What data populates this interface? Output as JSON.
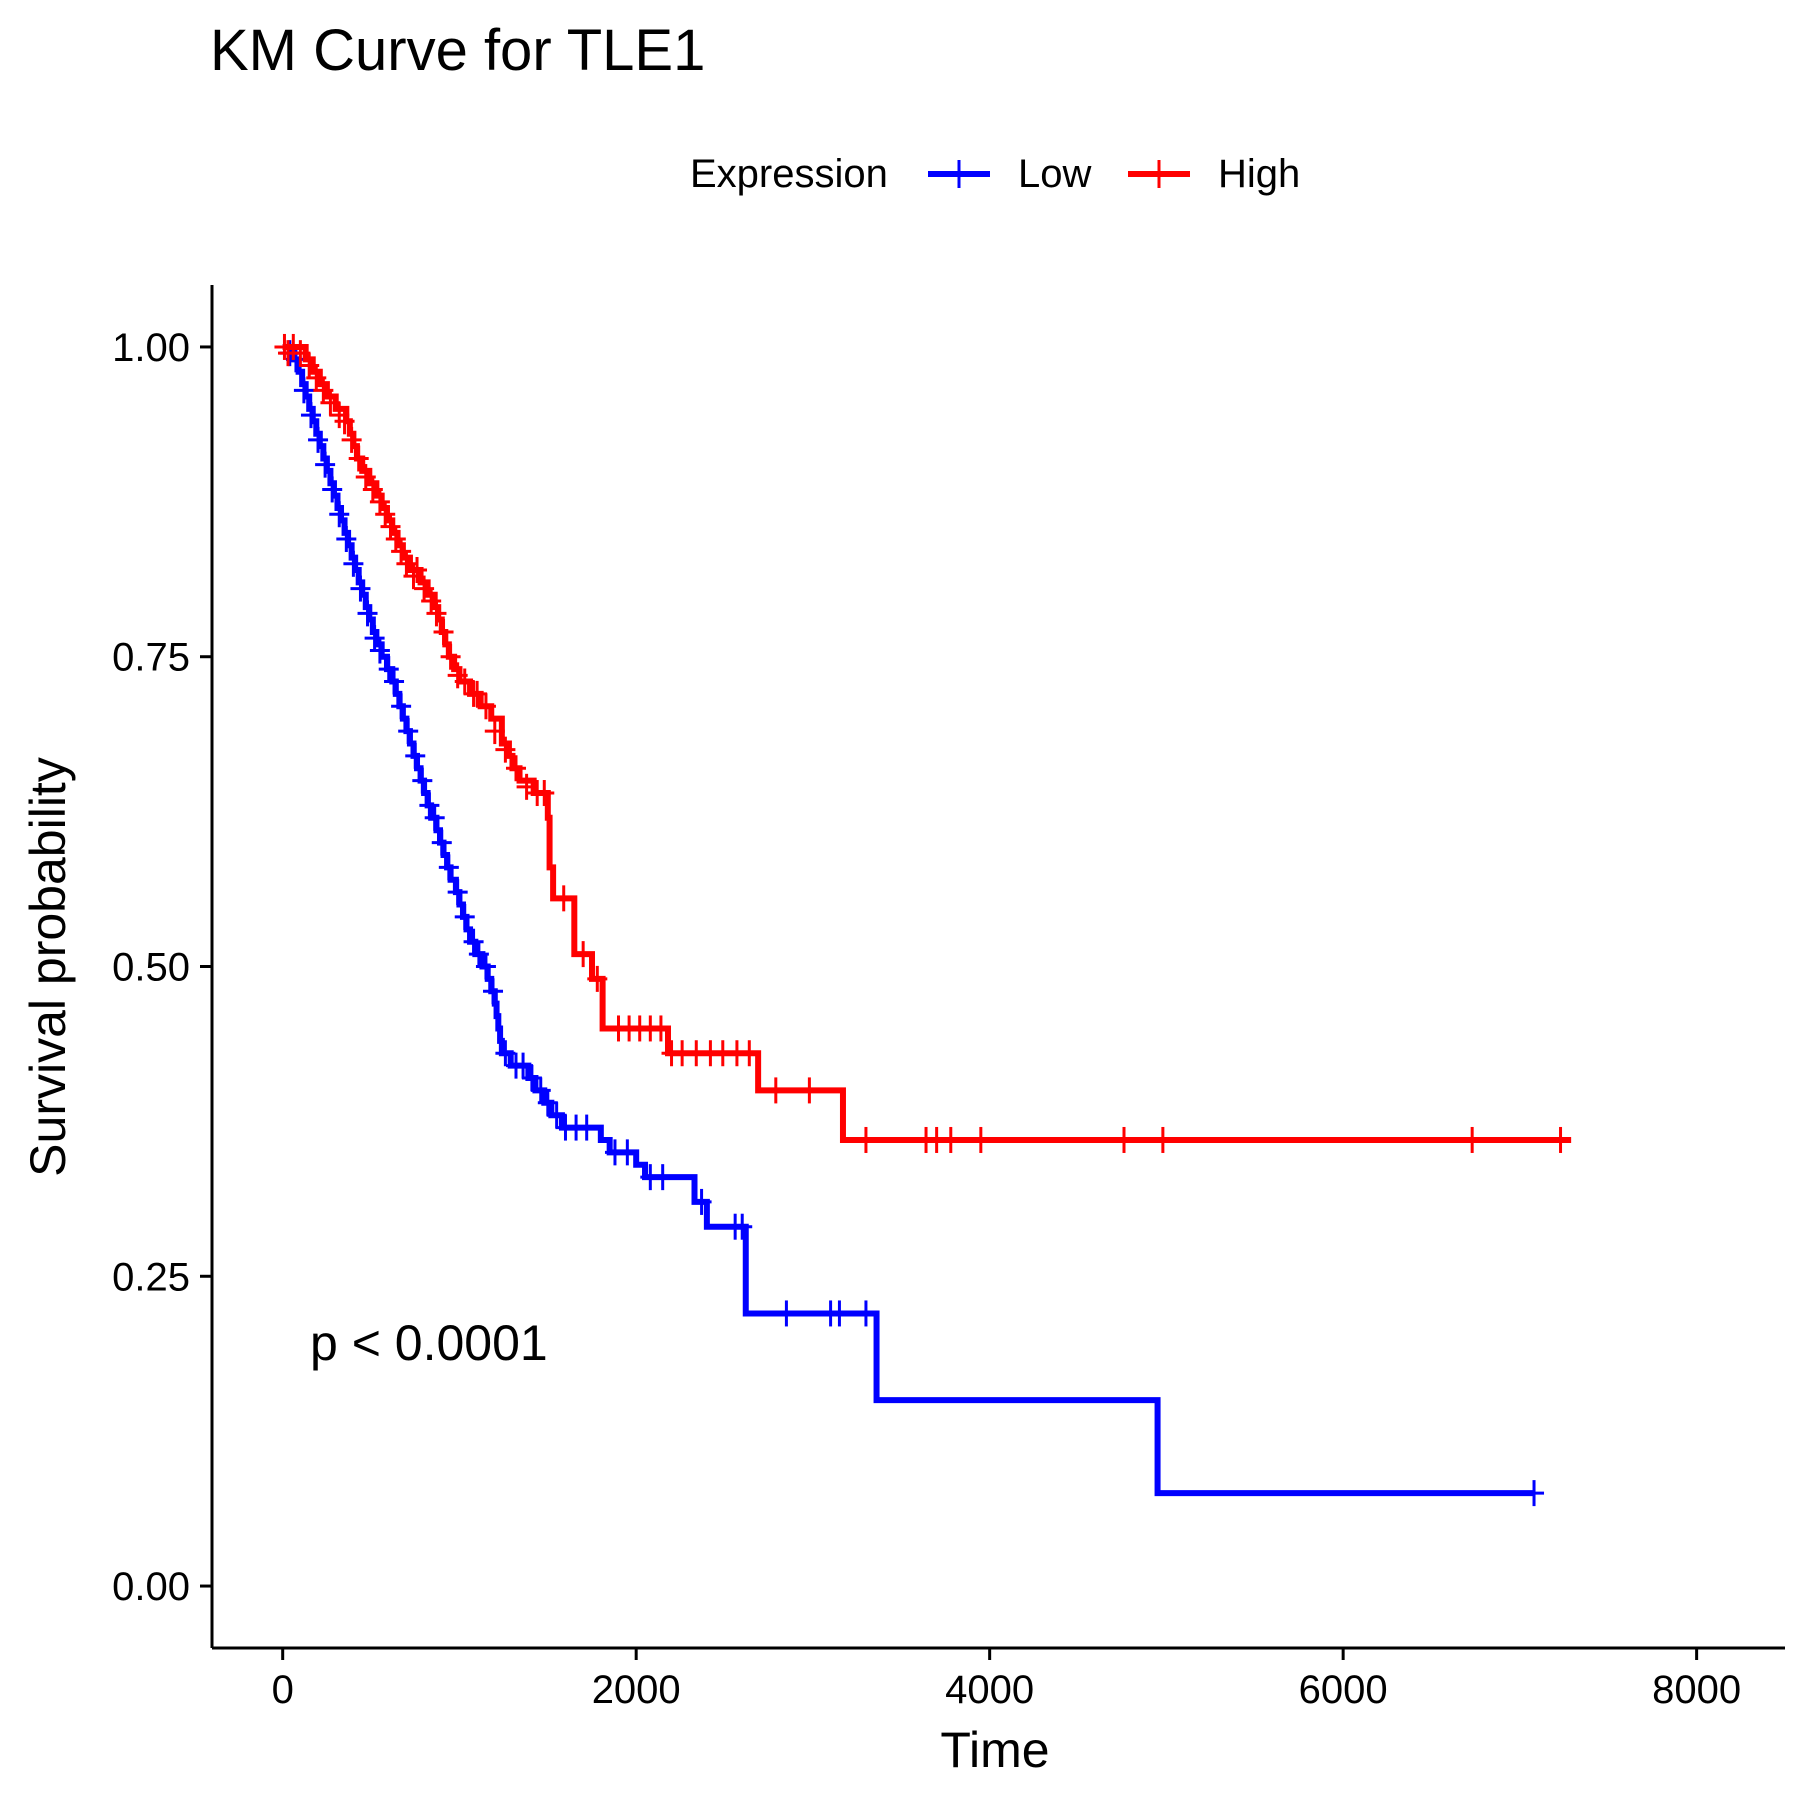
{
  "chart_data": {
    "type": "line",
    "subtype": "kaplan-meier",
    "title": "KM Curve for TLE1",
    "xlabel": "Time",
    "ylabel": "Survival probability",
    "xlim": [
      -400,
      8500
    ],
    "ylim": [
      -0.05,
      1.05
    ],
    "x_ticks": [
      0,
      2000,
      4000,
      6000,
      8000
    ],
    "x_tick_labels": [
      "0",
      "2000",
      "4000",
      "6000",
      "8000"
    ],
    "y_ticks": [
      0,
      0.25,
      0.5,
      0.75,
      1.0
    ],
    "y_tick_labels": [
      "0.00",
      "0.25",
      "0.50",
      "0.75",
      "1.00"
    ],
    "grid": false,
    "legend": {
      "title": "Expression",
      "position": "top"
    },
    "annotation": "p < 0.0001",
    "series": [
      {
        "name": "Low",
        "color": "#0000ff",
        "steps": [
          [
            0,
            1.0
          ],
          [
            60,
            0.99
          ],
          [
            90,
            0.98
          ],
          [
            110,
            0.97
          ],
          [
            130,
            0.96
          ],
          [
            150,
            0.95
          ],
          [
            170,
            0.94
          ],
          [
            190,
            0.93
          ],
          [
            210,
            0.92
          ],
          [
            230,
            0.91
          ],
          [
            250,
            0.9
          ],
          [
            270,
            0.89
          ],
          [
            290,
            0.88
          ],
          [
            310,
            0.87
          ],
          [
            330,
            0.86
          ],
          [
            350,
            0.85
          ],
          [
            370,
            0.84
          ],
          [
            390,
            0.83
          ],
          [
            410,
            0.82
          ],
          [
            430,
            0.81
          ],
          [
            450,
            0.8
          ],
          [
            470,
            0.79
          ],
          [
            490,
            0.78
          ],
          [
            510,
            0.77
          ],
          [
            530,
            0.76
          ],
          [
            560,
            0.75
          ],
          [
            590,
            0.74
          ],
          [
            620,
            0.73
          ],
          [
            640,
            0.72
          ],
          [
            660,
            0.71
          ],
          [
            680,
            0.7
          ],
          [
            700,
            0.69
          ],
          [
            720,
            0.68
          ],
          [
            740,
            0.67
          ],
          [
            760,
            0.66
          ],
          [
            780,
            0.65
          ],
          [
            800,
            0.64
          ],
          [
            820,
            0.63
          ],
          [
            840,
            0.62
          ],
          [
            870,
            0.61
          ],
          [
            890,
            0.6
          ],
          [
            910,
            0.59
          ],
          [
            930,
            0.58
          ],
          [
            950,
            0.57
          ],
          [
            980,
            0.56
          ],
          [
            1000,
            0.55
          ],
          [
            1020,
            0.54
          ],
          [
            1040,
            0.53
          ],
          [
            1060,
            0.52
          ],
          [
            1090,
            0.51
          ],
          [
            1130,
            0.5
          ],
          [
            1160,
            0.49
          ],
          [
            1180,
            0.48
          ],
          [
            1200,
            0.47
          ],
          [
            1210,
            0.46
          ],
          [
            1220,
            0.45
          ],
          [
            1230,
            0.44
          ],
          [
            1240,
            0.43
          ],
          [
            1290,
            0.42
          ],
          [
            1390,
            0.41
          ],
          [
            1430,
            0.4
          ],
          [
            1480,
            0.39
          ],
          [
            1520,
            0.38
          ],
          [
            1580,
            0.37
          ],
          [
            1800,
            0.36
          ],
          [
            1850,
            0.35
          ],
          [
            2000,
            0.34
          ],
          [
            2050,
            0.33
          ],
          [
            2330,
            0.31
          ],
          [
            2400,
            0.29
          ],
          [
            2620,
            0.22
          ],
          [
            3360,
            0.15
          ],
          [
            4950,
            0.075
          ],
          [
            7080,
            0.075
          ]
        ],
        "censored": [
          [
            40,
            0.995
          ],
          [
            75,
            0.99
          ],
          [
            120,
            0.965
          ],
          [
            160,
            0.945
          ],
          [
            200,
            0.925
          ],
          [
            240,
            0.905
          ],
          [
            280,
            0.885
          ],
          [
            320,
            0.865
          ],
          [
            360,
            0.845
          ],
          [
            400,
            0.825
          ],
          [
            440,
            0.805
          ],
          [
            480,
            0.785
          ],
          [
            520,
            0.765
          ],
          [
            550,
            0.755
          ],
          [
            600,
            0.74
          ],
          [
            630,
            0.73
          ],
          [
            670,
            0.71
          ],
          [
            710,
            0.69
          ],
          [
            750,
            0.67
          ],
          [
            790,
            0.65
          ],
          [
            830,
            0.63
          ],
          [
            860,
            0.62
          ],
          [
            900,
            0.6
          ],
          [
            940,
            0.58
          ],
          [
            990,
            0.56
          ],
          [
            1030,
            0.54
          ],
          [
            1080,
            0.52
          ],
          [
            1110,
            0.51
          ],
          [
            1150,
            0.5
          ],
          [
            1190,
            0.48
          ],
          [
            1260,
            0.43
          ],
          [
            1320,
            0.42
          ],
          [
            1360,
            0.42
          ],
          [
            1410,
            0.41
          ],
          [
            1460,
            0.4
          ],
          [
            1500,
            0.39
          ],
          [
            1550,
            0.38
          ],
          [
            1600,
            0.37
          ],
          [
            1660,
            0.37
          ],
          [
            1720,
            0.37
          ],
          [
            1880,
            0.35
          ],
          [
            1950,
            0.35
          ],
          [
            2080,
            0.33
          ],
          [
            2150,
            0.33
          ],
          [
            2370,
            0.31
          ],
          [
            2560,
            0.29
          ],
          [
            2600,
            0.29
          ],
          [
            2850,
            0.22
          ],
          [
            3100,
            0.22
          ],
          [
            3150,
            0.22
          ],
          [
            3300,
            0.22
          ],
          [
            7080,
            0.075
          ]
        ]
      },
      {
        "name": "High",
        "color": "#ff0000",
        "steps": [
          [
            0,
            1.0
          ],
          [
            130,
            0.99
          ],
          [
            170,
            0.98
          ],
          [
            210,
            0.97
          ],
          [
            250,
            0.96
          ],
          [
            300,
            0.95
          ],
          [
            360,
            0.94
          ],
          [
            380,
            0.93
          ],
          [
            400,
            0.92
          ],
          [
            420,
            0.91
          ],
          [
            450,
            0.9
          ],
          [
            490,
            0.89
          ],
          [
            530,
            0.88
          ],
          [
            560,
            0.87
          ],
          [
            590,
            0.86
          ],
          [
            620,
            0.85
          ],
          [
            650,
            0.84
          ],
          [
            680,
            0.83
          ],
          [
            720,
            0.82
          ],
          [
            780,
            0.81
          ],
          [
            820,
            0.8
          ],
          [
            860,
            0.79
          ],
          [
            880,
            0.78
          ],
          [
            900,
            0.77
          ],
          [
            920,
            0.76
          ],
          [
            940,
            0.75
          ],
          [
            970,
            0.74
          ],
          [
            1000,
            0.73
          ],
          [
            1060,
            0.72
          ],
          [
            1120,
            0.71
          ],
          [
            1180,
            0.7
          ],
          [
            1240,
            0.68
          ],
          [
            1280,
            0.67
          ],
          [
            1300,
            0.66
          ],
          [
            1340,
            0.65
          ],
          [
            1420,
            0.64
          ],
          [
            1500,
            0.62
          ],
          [
            1510,
            0.58
          ],
          [
            1530,
            0.555
          ],
          [
            1650,
            0.51
          ],
          [
            1750,
            0.49
          ],
          [
            1810,
            0.45
          ],
          [
            2180,
            0.43
          ],
          [
            2690,
            0.4
          ],
          [
            3170,
            0.36
          ],
          [
            7290,
            0.36
          ]
        ],
        "censored": [
          [
            10,
            1.0
          ],
          [
            30,
            0.995
          ],
          [
            60,
            1.0
          ],
          [
            100,
            0.995
          ],
          [
            150,
            0.985
          ],
          [
            190,
            0.975
          ],
          [
            230,
            0.965
          ],
          [
            270,
            0.955
          ],
          [
            320,
            0.945
          ],
          [
            350,
            0.94
          ],
          [
            390,
            0.925
          ],
          [
            430,
            0.91
          ],
          [
            470,
            0.895
          ],
          [
            510,
            0.885
          ],
          [
            550,
            0.875
          ],
          [
            580,
            0.865
          ],
          [
            610,
            0.855
          ],
          [
            640,
            0.845
          ],
          [
            670,
            0.835
          ],
          [
            700,
            0.825
          ],
          [
            740,
            0.815
          ],
          [
            760,
            0.82
          ],
          [
            800,
            0.805
          ],
          [
            840,
            0.795
          ],
          [
            870,
            0.785
          ],
          [
            910,
            0.77
          ],
          [
            950,
            0.75
          ],
          [
            990,
            0.735
          ],
          [
            1030,
            0.73
          ],
          [
            1080,
            0.72
          ],
          [
            1100,
            0.72
          ],
          [
            1150,
            0.71
          ],
          [
            1200,
            0.69
          ],
          [
            1260,
            0.675
          ],
          [
            1320,
            0.66
          ],
          [
            1380,
            0.645
          ],
          [
            1440,
            0.64
          ],
          [
            1480,
            0.64
          ],
          [
            1590,
            0.555
          ],
          [
            1700,
            0.51
          ],
          [
            1780,
            0.49
          ],
          [
            1900,
            0.45
          ],
          [
            1960,
            0.45
          ],
          [
            2020,
            0.45
          ],
          [
            2080,
            0.45
          ],
          [
            2140,
            0.45
          ],
          [
            2200,
            0.43
          ],
          [
            2260,
            0.43
          ],
          [
            2340,
            0.43
          ],
          [
            2420,
            0.43
          ],
          [
            2490,
            0.43
          ],
          [
            2570,
            0.43
          ],
          [
            2640,
            0.43
          ],
          [
            2790,
            0.4
          ],
          [
            2980,
            0.4
          ],
          [
            3300,
            0.36
          ],
          [
            3640,
            0.36
          ],
          [
            3700,
            0.36
          ],
          [
            3780,
            0.36
          ],
          [
            3950,
            0.36
          ],
          [
            4760,
            0.36
          ],
          [
            4980,
            0.36
          ],
          [
            6730,
            0.36
          ],
          [
            7230,
            0.36
          ]
        ]
      }
    ]
  }
}
